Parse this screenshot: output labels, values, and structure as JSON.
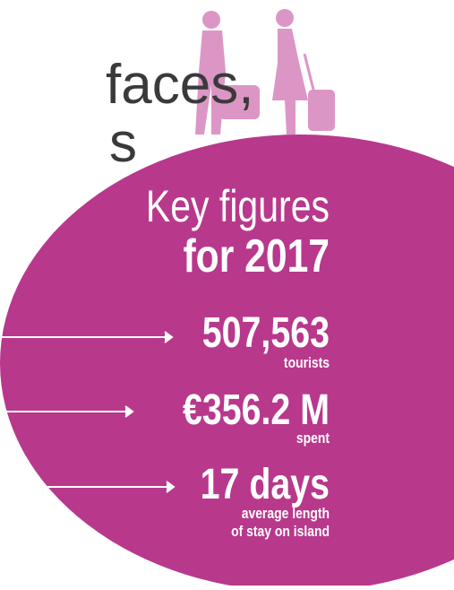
{
  "heading": {
    "lines": [
      "faces,",
      "s"
    ]
  },
  "key_figures": {
    "title": "Key figures",
    "subtitle": "for 2017",
    "items": [
      {
        "value": "507,563",
        "caption": [
          "tourists"
        ]
      },
      {
        "value": "€356.2 M",
        "caption": [
          "spent"
        ]
      },
      {
        "value": "17 days",
        "caption": [
          "average length",
          "of stay on island"
        ]
      }
    ]
  }
}
